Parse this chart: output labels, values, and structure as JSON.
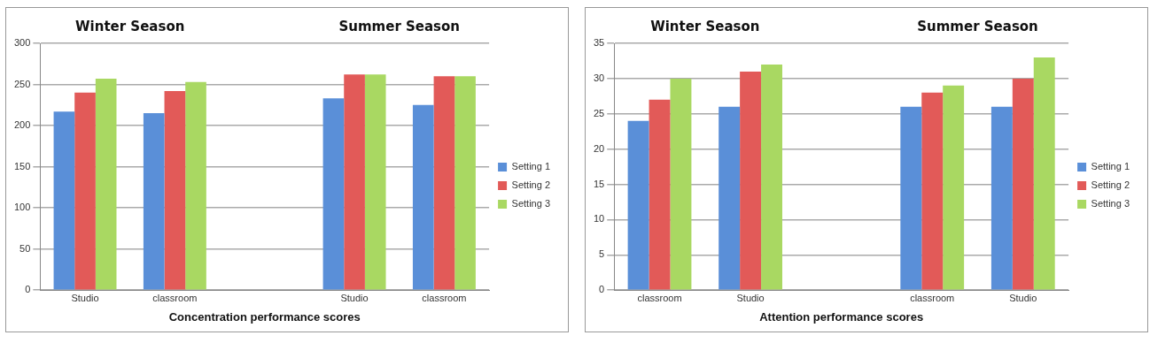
{
  "chart_data": [
    {
      "type": "bar",
      "xlabel": "Concentration performance scores",
      "annotations": [
        "Winter Season",
        "Summer Season"
      ],
      "categories": [
        "Studio",
        "classroom",
        null,
        "Studio",
        "classroom"
      ],
      "series": [
        {
          "name": "Setting 1",
          "color": "#5a8fd8",
          "values": [
            217,
            215,
            null,
            233,
            225
          ]
        },
        {
          "name": "Setting 2",
          "color": "#e25a58",
          "values": [
            240,
            242,
            null,
            262,
            260
          ]
        },
        {
          "name": "Setting 3",
          "color": "#a9d862",
          "values": [
            257,
            253,
            null,
            262,
            260
          ]
        }
      ],
      "ylim": [
        0,
        300
      ],
      "yticks": [
        0,
        50,
        100,
        150,
        200,
        250,
        300
      ],
      "grid": "y",
      "legend": "right"
    },
    {
      "type": "bar",
      "xlabel": "Attention performance scores",
      "annotations": [
        "Winter Season",
        "Summer Season"
      ],
      "categories": [
        "classroom",
        "Studio",
        null,
        "classroom",
        "Studio"
      ],
      "series": [
        {
          "name": "Setting 1",
          "color": "#5a8fd8",
          "values": [
            24,
            26,
            null,
            26,
            26
          ]
        },
        {
          "name": "Setting 2",
          "color": "#e25a58",
          "values": [
            27,
            31,
            null,
            28,
            30
          ]
        },
        {
          "name": "Setting 3",
          "color": "#a9d862",
          "values": [
            30,
            32,
            null,
            29,
            33
          ]
        }
      ],
      "ylim": [
        0,
        35
      ],
      "yticks": [
        0,
        5,
        10,
        15,
        20,
        25,
        30,
        35
      ],
      "grid": "y",
      "legend": "right"
    }
  ]
}
